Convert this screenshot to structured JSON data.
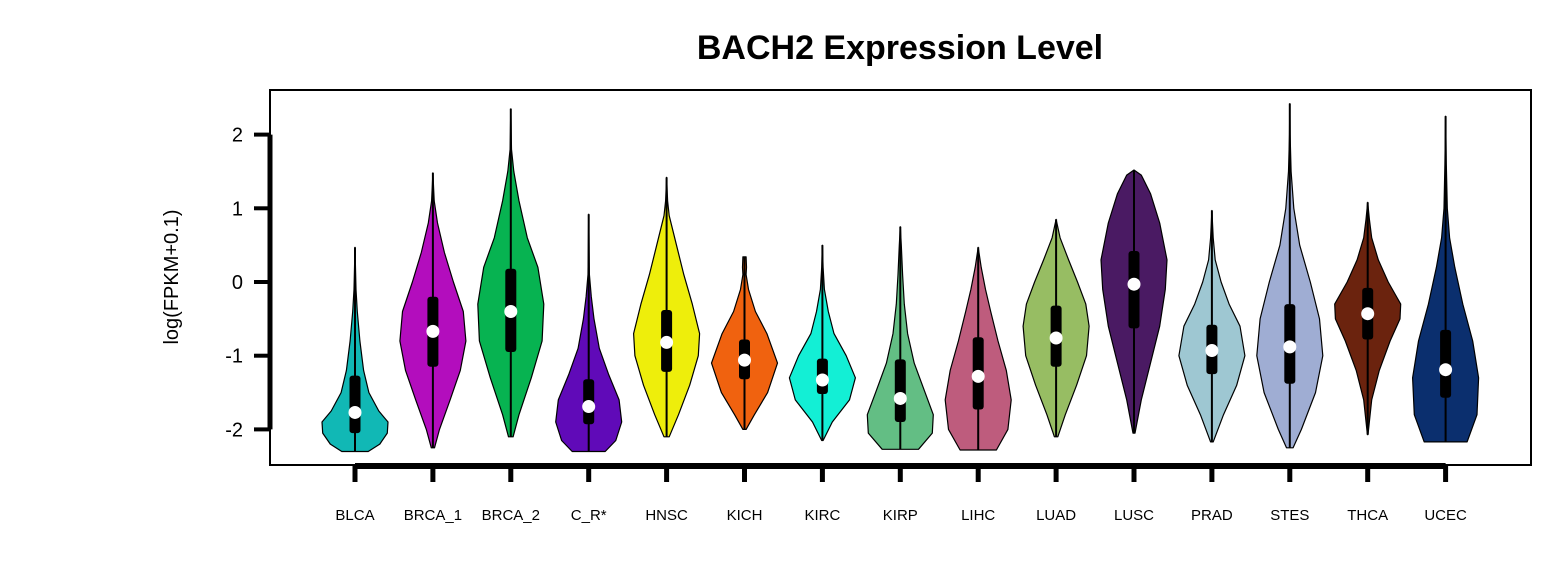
{
  "chart_data": {
    "type": "violin",
    "title": "BACH2 Expression Level",
    "xlabel": "",
    "ylabel": "log(FPKM+0.1)",
    "ylim": [
      -2.5,
      2.5
    ],
    "yticks": [
      -2,
      -1,
      0,
      1,
      2
    ],
    "ytick_labels": [
      "-2",
      "-1",
      "0",
      "1",
      "2"
    ],
    "grid": false,
    "categories": [
      "BLCA",
      "BRCA_1",
      "BRCA_2",
      "C_R*",
      "HNSC",
      "KICH",
      "KIRC",
      "KIRP",
      "LIHC",
      "LUAD",
      "LUSC",
      "PRAD",
      "STES",
      "THCA",
      "UCEC"
    ],
    "colors": [
      "#11B8B5",
      "#B30DBD",
      "#07B351",
      "#600AB8",
      "#EEEE0B",
      "#F0620F",
      "#13EFD5",
      "#63BE84",
      "#BE5C7D",
      "#97BD63",
      "#4A1A63",
      "#9EC7D2",
      "#9FADD3",
      "#6B230E",
      "#0B2F6E"
    ],
    "series": [
      {
        "min": -2.3,
        "q1": -2.05,
        "median": -1.77,
        "q3": -1.27,
        "max": 0.47,
        "density": [
          [
            -2.3,
            0.4
          ],
          [
            -2.2,
            0.75
          ],
          [
            -2.05,
            0.98
          ],
          [
            -1.9,
            1.0
          ],
          [
            -1.75,
            0.72
          ],
          [
            -1.5,
            0.42
          ],
          [
            -1.2,
            0.26
          ],
          [
            -0.8,
            0.15
          ],
          [
            -0.4,
            0.07
          ],
          [
            -0.1,
            0.03
          ],
          [
            0.47,
            0
          ]
        ]
      },
      {
        "min": -2.25,
        "q1": -1.15,
        "median": -0.67,
        "q3": -0.2,
        "max": 1.48,
        "density": [
          [
            -2.25,
            0.05
          ],
          [
            -2.0,
            0.2
          ],
          [
            -1.6,
            0.52
          ],
          [
            -1.2,
            0.83
          ],
          [
            -0.8,
            1.0
          ],
          [
            -0.4,
            0.92
          ],
          [
            0.0,
            0.62
          ],
          [
            0.4,
            0.35
          ],
          [
            0.8,
            0.14
          ],
          [
            1.1,
            0.04
          ],
          [
            1.48,
            0
          ]
        ]
      },
      {
        "min": -2.1,
        "q1": -0.95,
        "median": -0.4,
        "q3": 0.18,
        "max": 2.35,
        "density": [
          [
            -2.1,
            0.07
          ],
          [
            -1.8,
            0.25
          ],
          [
            -1.3,
            0.62
          ],
          [
            -0.8,
            0.95
          ],
          [
            -0.3,
            1.0
          ],
          [
            0.2,
            0.82
          ],
          [
            0.6,
            0.5
          ],
          [
            1.1,
            0.25
          ],
          [
            1.5,
            0.09
          ],
          [
            1.8,
            0.02
          ],
          [
            2.35,
            0
          ]
        ]
      },
      {
        "min": -2.3,
        "q1": -1.93,
        "median": -1.69,
        "q3": -1.32,
        "max": 0.92,
        "density": [
          [
            -2.3,
            0.5
          ],
          [
            -2.15,
            0.82
          ],
          [
            -1.9,
            1.0
          ],
          [
            -1.6,
            0.92
          ],
          [
            -1.25,
            0.6
          ],
          [
            -0.9,
            0.32
          ],
          [
            -0.5,
            0.16
          ],
          [
            -0.2,
            0.08
          ],
          [
            0.1,
            0.02
          ],
          [
            0.92,
            0
          ]
        ]
      },
      {
        "min": -2.1,
        "q1": -1.22,
        "median": -0.82,
        "q3": -0.38,
        "max": 1.42,
        "density": [
          [
            -2.1,
            0.08
          ],
          [
            -1.8,
            0.36
          ],
          [
            -1.4,
            0.7
          ],
          [
            -1.0,
            0.96
          ],
          [
            -0.7,
            1.0
          ],
          [
            -0.3,
            0.78
          ],
          [
            0.1,
            0.52
          ],
          [
            0.5,
            0.3
          ],
          [
            0.9,
            0.08
          ],
          [
            1.1,
            0.03
          ],
          [
            1.42,
            0
          ]
        ]
      },
      {
        "min": -2.0,
        "q1": -1.32,
        "median": -1.06,
        "q3": -0.78,
        "max": 0.34,
        "density": [
          [
            -2.0,
            0.05
          ],
          [
            -1.8,
            0.3
          ],
          [
            -1.5,
            0.7
          ],
          [
            -1.1,
            1.0
          ],
          [
            -0.7,
            0.68
          ],
          [
            -0.4,
            0.33
          ],
          [
            -0.1,
            0.12
          ],
          [
            0.1,
            0.05
          ],
          [
            0.2,
            0.06
          ],
          [
            0.34,
            0.05
          ]
        ]
      },
      {
        "min": -2.15,
        "q1": -1.52,
        "median": -1.33,
        "q3": -1.04,
        "max": 0.5,
        "density": [
          [
            -2.15,
            0.02
          ],
          [
            -1.9,
            0.3
          ],
          [
            -1.6,
            0.82
          ],
          [
            -1.3,
            1.0
          ],
          [
            -1.0,
            0.72
          ],
          [
            -0.7,
            0.35
          ],
          [
            -0.4,
            0.18
          ],
          [
            -0.1,
            0.06
          ],
          [
            0.2,
            0.02
          ],
          [
            0.5,
            0
          ]
        ]
      },
      {
        "min": -2.27,
        "q1": -1.9,
        "median": -1.58,
        "q3": -1.05,
        "max": 0.75,
        "density": [
          [
            -2.27,
            0.55
          ],
          [
            -2.05,
            0.97
          ],
          [
            -1.8,
            1.0
          ],
          [
            -1.5,
            0.75
          ],
          [
            -1.1,
            0.42
          ],
          [
            -0.7,
            0.22
          ],
          [
            -0.3,
            0.12
          ],
          [
            0.1,
            0.07
          ],
          [
            0.5,
            0.03
          ],
          [
            0.75,
            0
          ]
        ]
      },
      {
        "min": -2.28,
        "q1": -1.73,
        "median": -1.28,
        "q3": -0.75,
        "max": 0.47,
        "density": [
          [
            -2.28,
            0.55
          ],
          [
            -2.0,
            0.9
          ],
          [
            -1.6,
            1.0
          ],
          [
            -1.2,
            0.85
          ],
          [
            -0.8,
            0.6
          ],
          [
            -0.4,
            0.38
          ],
          [
            -0.1,
            0.22
          ],
          [
            0.2,
            0.09
          ],
          [
            0.47,
            0
          ]
        ]
      },
      {
        "min": -2.1,
        "q1": -1.15,
        "median": -0.76,
        "q3": -0.32,
        "max": 0.85,
        "density": [
          [
            -2.1,
            0.05
          ],
          [
            -1.8,
            0.28
          ],
          [
            -1.4,
            0.62
          ],
          [
            -1.0,
            0.92
          ],
          [
            -0.6,
            1.0
          ],
          [
            -0.3,
            0.9
          ],
          [
            0.0,
            0.65
          ],
          [
            0.3,
            0.38
          ],
          [
            0.6,
            0.12
          ],
          [
            0.85,
            0
          ]
        ]
      },
      {
        "min": -2.05,
        "q1": -0.63,
        "median": -0.03,
        "q3": 0.42,
        "max": 1.52,
        "density": [
          [
            -2.05,
            0.03
          ],
          [
            -1.6,
            0.22
          ],
          [
            -1.1,
            0.5
          ],
          [
            -0.6,
            0.78
          ],
          [
            -0.1,
            0.95
          ],
          [
            0.3,
            1.0
          ],
          [
            0.8,
            0.78
          ],
          [
            1.2,
            0.5
          ],
          [
            1.45,
            0.22
          ],
          [
            1.52,
            0
          ]
        ]
      },
      {
        "min": -2.17,
        "q1": -1.25,
        "median": -0.93,
        "q3": -0.58,
        "max": 0.97,
        "density": [
          [
            -2.17,
            0.04
          ],
          [
            -1.8,
            0.35
          ],
          [
            -1.4,
            0.75
          ],
          [
            -1.0,
            1.0
          ],
          [
            -0.6,
            0.85
          ],
          [
            -0.3,
            0.52
          ],
          [
            0.0,
            0.28
          ],
          [
            0.3,
            0.1
          ],
          [
            0.6,
            0.04
          ],
          [
            0.97,
            0
          ]
        ]
      },
      {
        "min": -2.25,
        "q1": -1.38,
        "median": -0.88,
        "q3": -0.3,
        "max": 2.42,
        "density": [
          [
            -2.25,
            0.1
          ],
          [
            -2.0,
            0.35
          ],
          [
            -1.5,
            0.78
          ],
          [
            -1.0,
            1.0
          ],
          [
            -0.5,
            0.9
          ],
          [
            0.0,
            0.62
          ],
          [
            0.5,
            0.3
          ],
          [
            1.0,
            0.12
          ],
          [
            1.5,
            0.04
          ],
          [
            2.0,
            0.01
          ],
          [
            2.42,
            0
          ]
        ]
      },
      {
        "min": -2.07,
        "q1": -0.78,
        "median": -0.43,
        "q3": -0.08,
        "max": 1.08,
        "density": [
          [
            -2.07,
            0.01
          ],
          [
            -1.6,
            0.12
          ],
          [
            -1.2,
            0.35
          ],
          [
            -0.8,
            0.68
          ],
          [
            -0.5,
            0.98
          ],
          [
            -0.3,
            1.0
          ],
          [
            0.0,
            0.62
          ],
          [
            0.3,
            0.32
          ],
          [
            0.6,
            0.12
          ],
          [
            0.85,
            0.05
          ],
          [
            1.08,
            0
          ]
        ]
      },
      {
        "min": -2.17,
        "q1": -1.57,
        "median": -1.19,
        "q3": -0.65,
        "max": 2.25,
        "density": [
          [
            -2.17,
            0.65
          ],
          [
            -1.8,
            0.95
          ],
          [
            -1.3,
            1.0
          ],
          [
            -0.8,
            0.82
          ],
          [
            -0.3,
            0.52
          ],
          [
            0.2,
            0.28
          ],
          [
            0.6,
            0.12
          ],
          [
            1.0,
            0.05
          ],
          [
            1.6,
            0.02
          ],
          [
            2.25,
            0
          ]
        ]
      }
    ]
  }
}
